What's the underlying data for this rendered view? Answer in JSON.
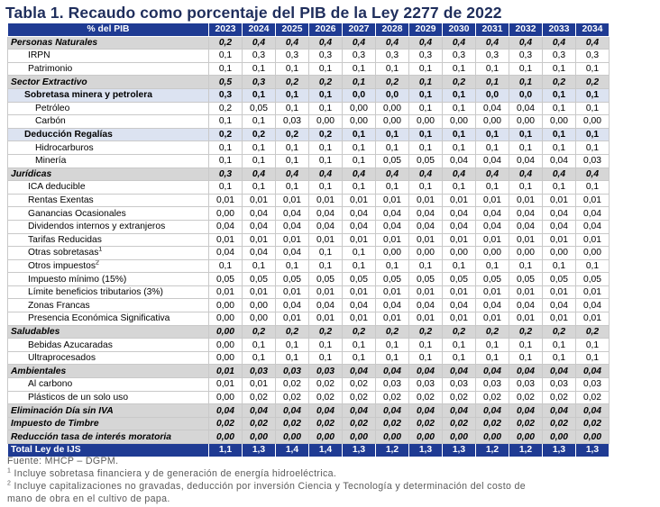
{
  "title": "Tabla 1. Recaudo como porcentaje del PIB de la Ley 2277 de 2022",
  "header": {
    "label": "% del PIB",
    "years": [
      "2023",
      "2024",
      "2025",
      "2026",
      "2027",
      "2028",
      "2029",
      "2030",
      "2031",
      "2032",
      "2033",
      "2034"
    ]
  },
  "rows": [
    {
      "type": "sec",
      "label": "Personas Naturales",
      "values": [
        "0,2",
        "0,4",
        "0,4",
        "0,4",
        "0,4",
        "0,4",
        "0,4",
        "0,4",
        "0,4",
        "0,4",
        "0,4",
        "0,4"
      ]
    },
    {
      "type": "l1",
      "label": "IRPN",
      "values": [
        "0,1",
        "0,3",
        "0,3",
        "0,3",
        "0,3",
        "0,3",
        "0,3",
        "0,3",
        "0,3",
        "0,3",
        "0,3",
        "0,3"
      ]
    },
    {
      "type": "l1",
      "label": "Patrimonio",
      "values": [
        "0,1",
        "0,1",
        "0,1",
        "0,1",
        "0,1",
        "0,1",
        "0,1",
        "0,1",
        "0,1",
        "0,1",
        "0,1",
        "0,1"
      ]
    },
    {
      "type": "sec",
      "label": "Sector Extractivo",
      "values": [
        "0,5",
        "0,3",
        "0,2",
        "0,2",
        "0,1",
        "0,2",
        "0,1",
        "0,2",
        "0,1",
        "0,1",
        "0,2",
        "0,2"
      ]
    },
    {
      "type": "sub",
      "label": "Sobretasa minera y petrolera",
      "values": [
        "0,3",
        "0,1",
        "0,1",
        "0,1",
        "0,0",
        "0,0",
        "0,1",
        "0,1",
        "0,0",
        "0,0",
        "0,1",
        "0,1"
      ]
    },
    {
      "type": "l2",
      "label": "Petróleo",
      "values": [
        "0,2",
        "0,05",
        "0,1",
        "0,1",
        "0,00",
        "0,00",
        "0,1",
        "0,1",
        "0,04",
        "0,04",
        "0,1",
        "0,1"
      ]
    },
    {
      "type": "l2",
      "label": "Carbón",
      "values": [
        "0,1",
        "0,1",
        "0,03",
        "0,00",
        "0,00",
        "0,00",
        "0,00",
        "0,00",
        "0,00",
        "0,00",
        "0,00",
        "0,00"
      ]
    },
    {
      "type": "sub",
      "label": "Deducción Regalías",
      "values": [
        "0,2",
        "0,2",
        "0,2",
        "0,2",
        "0,1",
        "0,1",
        "0,1",
        "0,1",
        "0,1",
        "0,1",
        "0,1",
        "0,1"
      ]
    },
    {
      "type": "l2",
      "label": "Hidrocarburos",
      "values": [
        "0,1",
        "0,1",
        "0,1",
        "0,1",
        "0,1",
        "0,1",
        "0,1",
        "0,1",
        "0,1",
        "0,1",
        "0,1",
        "0,1"
      ]
    },
    {
      "type": "l2",
      "label": "Minería",
      "values": [
        "0,1",
        "0,1",
        "0,1",
        "0,1",
        "0,1",
        "0,05",
        "0,05",
        "0,04",
        "0,04",
        "0,04",
        "0,04",
        "0,03"
      ]
    },
    {
      "type": "sec",
      "label": "Jurídicas",
      "values": [
        "0,3",
        "0,4",
        "0,4",
        "0,4",
        "0,4",
        "0,4",
        "0,4",
        "0,4",
        "0,4",
        "0,4",
        "0,4",
        "0,4"
      ]
    },
    {
      "type": "l1",
      "label": "ICA deducible",
      "values": [
        "0,1",
        "0,1",
        "0,1",
        "0,1",
        "0,1",
        "0,1",
        "0,1",
        "0,1",
        "0,1",
        "0,1",
        "0,1",
        "0,1"
      ]
    },
    {
      "type": "l1",
      "label": "Rentas Exentas",
      "values": [
        "0,01",
        "0,01",
        "0,01",
        "0,01",
        "0,01",
        "0,01",
        "0,01",
        "0,01",
        "0,01",
        "0,01",
        "0,01",
        "0,01"
      ]
    },
    {
      "type": "l1",
      "label": "Ganancias Ocasionales",
      "values": [
        "0,00",
        "0,04",
        "0,04",
        "0,04",
        "0,04",
        "0,04",
        "0,04",
        "0,04",
        "0,04",
        "0,04",
        "0,04",
        "0,04"
      ]
    },
    {
      "type": "l1",
      "label": "Dividendos internos y extranjeros",
      "values": [
        "0,04",
        "0,04",
        "0,04",
        "0,04",
        "0,04",
        "0,04",
        "0,04",
        "0,04",
        "0,04",
        "0,04",
        "0,04",
        "0,04"
      ]
    },
    {
      "type": "l1",
      "label": "Tarifas Reducidas",
      "values": [
        "0,01",
        "0,01",
        "0,01",
        "0,01",
        "0,01",
        "0,01",
        "0,01",
        "0,01",
        "0,01",
        "0,01",
        "0,01",
        "0,01"
      ]
    },
    {
      "type": "l1",
      "label": "Otras sobretasas",
      "sup": "1",
      "values": [
        "0,04",
        "0,04",
        "0,04",
        "0,1",
        "0,1",
        "0,00",
        "0,00",
        "0,00",
        "0,00",
        "0,00",
        "0,00",
        "0,00"
      ]
    },
    {
      "type": "l1",
      "label": "Otros impuestos",
      "sup": "2",
      "values": [
        "0,1",
        "0,1",
        "0,1",
        "0,1",
        "0,1",
        "0,1",
        "0,1",
        "0,1",
        "0,1",
        "0,1",
        "0,1",
        "0,1"
      ]
    },
    {
      "type": "l1",
      "label": "Impuesto mínimo (15%)",
      "values": [
        "0,05",
        "0,05",
        "0,05",
        "0,05",
        "0,05",
        "0,05",
        "0,05",
        "0,05",
        "0,05",
        "0,05",
        "0,05",
        "0,05"
      ]
    },
    {
      "type": "l1",
      "label": "Límite beneficios tributarios (3%)",
      "values": [
        "0,01",
        "0,01",
        "0,01",
        "0,01",
        "0,01",
        "0,01",
        "0,01",
        "0,01",
        "0,01",
        "0,01",
        "0,01",
        "0,01"
      ]
    },
    {
      "type": "l1",
      "label": "Zonas Francas",
      "values": [
        "0,00",
        "0,00",
        "0,04",
        "0,04",
        "0,04",
        "0,04",
        "0,04",
        "0,04",
        "0,04",
        "0,04",
        "0,04",
        "0,04"
      ]
    },
    {
      "type": "l1",
      "label": "Presencia Económica Significativa",
      "values": [
        "0,00",
        "0,00",
        "0,01",
        "0,01",
        "0,01",
        "0,01",
        "0,01",
        "0,01",
        "0,01",
        "0,01",
        "0,01",
        "0,01"
      ]
    },
    {
      "type": "sec",
      "label": "Saludables",
      "values": [
        "0,00",
        "0,2",
        "0,2",
        "0,2",
        "0,2",
        "0,2",
        "0,2",
        "0,2",
        "0,2",
        "0,2",
        "0,2",
        "0,2"
      ]
    },
    {
      "type": "l1",
      "label": "Bebidas Azucaradas",
      "values": [
        "0,00",
        "0,1",
        "0,1",
        "0,1",
        "0,1",
        "0,1",
        "0,1",
        "0,1",
        "0,1",
        "0,1",
        "0,1",
        "0,1"
      ]
    },
    {
      "type": "l1",
      "label": "Ultraprocesados",
      "values": [
        "0,00",
        "0,1",
        "0,1",
        "0,1",
        "0,1",
        "0,1",
        "0,1",
        "0,1",
        "0,1",
        "0,1",
        "0,1",
        "0,1"
      ]
    },
    {
      "type": "sec",
      "label": "Ambientales",
      "values": [
        "0,01",
        "0,03",
        "0,03",
        "0,03",
        "0,04",
        "0,04",
        "0,04",
        "0,04",
        "0,04",
        "0,04",
        "0,04",
        "0,04"
      ]
    },
    {
      "type": "l1",
      "label": "Al carbono",
      "values": [
        "0,01",
        "0,01",
        "0,02",
        "0,02",
        "0,02",
        "0,03",
        "0,03",
        "0,03",
        "0,03",
        "0,03",
        "0,03",
        "0,03"
      ]
    },
    {
      "type": "l1",
      "label": "Plásticos de un solo uso",
      "values": [
        "0,00",
        "0,02",
        "0,02",
        "0,02",
        "0,02",
        "0,02",
        "0,02",
        "0,02",
        "0,02",
        "0,02",
        "0,02",
        "0,02"
      ]
    },
    {
      "type": "sec",
      "label": "Eliminación Día sin IVA",
      "values": [
        "0,04",
        "0,04",
        "0,04",
        "0,04",
        "0,04",
        "0,04",
        "0,04",
        "0,04",
        "0,04",
        "0,04",
        "0,04",
        "0,04"
      ]
    },
    {
      "type": "sec",
      "label": "Impuesto de Timbre",
      "values": [
        "0,02",
        "0,02",
        "0,02",
        "0,02",
        "0,02",
        "0,02",
        "0,02",
        "0,02",
        "0,02",
        "0,02",
        "0,02",
        "0,02"
      ]
    },
    {
      "type": "sec",
      "label": "Reducción tasa de interés moratoria",
      "values": [
        "0,00",
        "0,00",
        "0,00",
        "0,00",
        "0,00",
        "0,00",
        "0,00",
        "0,00",
        "0,00",
        "0,00",
        "0,00",
        "0,00"
      ]
    },
    {
      "type": "total",
      "label": "Total Ley de IJS",
      "values": [
        "1,1",
        "1,3",
        "1,4",
        "1,4",
        "1,3",
        "1,2",
        "1,3",
        "1,3",
        "1,2",
        "1,2",
        "1,3",
        "1,3"
      ]
    }
  ],
  "notes": {
    "source": "Fuente: MHCP – DGPM.",
    "note1_mark": "1",
    "note1": " Incluye sobretasa financiera y de generación de energía hidroeléctrica.",
    "note2_mark": "2",
    "note2_line1": " Incluye capitalizaciones no gravadas, deducción por inversión Ciencia y Tecnología y determinación del costo de",
    "note2_line2": "mano de obra en el cultivo de papa."
  }
}
